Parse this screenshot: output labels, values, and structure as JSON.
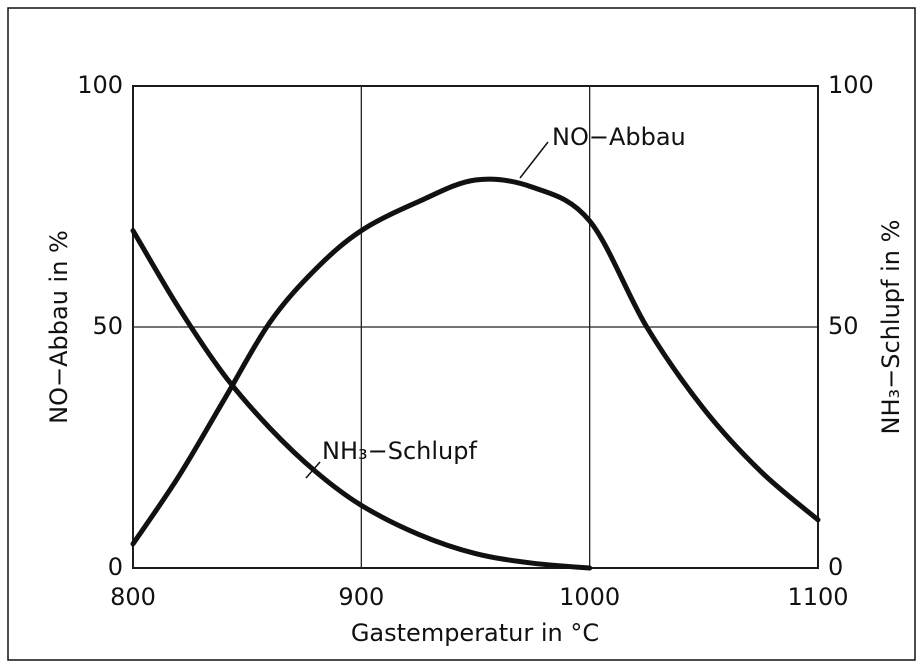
{
  "chart_data": {
    "type": "line",
    "x": [
      800,
      820,
      840,
      860,
      880,
      900,
      925,
      950,
      975,
      1000,
      1025,
      1050,
      1075,
      1100
    ],
    "series": [
      {
        "name": "NO−Abbau",
        "color": "#111111",
        "values": [
          5,
          19,
          35,
          51,
          62,
          70,
          76,
          80.5,
          79,
          72,
          50,
          33,
          20,
          10
        ]
      },
      {
        "name": "NH₃−Schlupf",
        "color": "#111111",
        "axis": "y2",
        "values": [
          70,
          54,
          40,
          29,
          20,
          13,
          7,
          3,
          1,
          0,
          null,
          null,
          null,
          null
        ]
      }
    ],
    "xlabel": "Gastemperatur in °C",
    "ylabel": "NO−Abbau in %",
    "y2label": "NH₃−Schlupf in %",
    "xlim": [
      800,
      1100
    ],
    "xticks": [
      800,
      900,
      1000,
      1100
    ],
    "ylim": [
      0,
      100
    ],
    "yticks": [
      0,
      50,
      100
    ],
    "y2lim": [
      0,
      100
    ],
    "y2ticks": [
      0,
      50,
      100
    ],
    "grid": true
  }
}
